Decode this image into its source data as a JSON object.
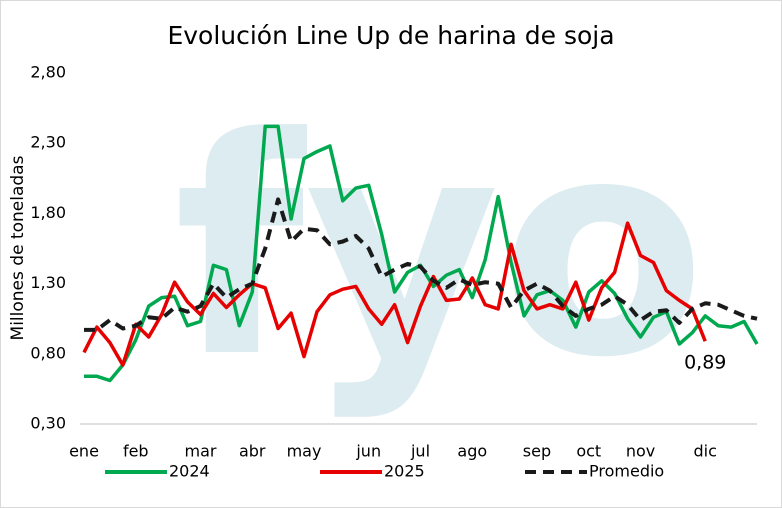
{
  "chart_data": {
    "type": "line",
    "title": "Evolución Line Up de harina de soja",
    "ylabel": "Millones de toneladas",
    "watermark": "fyo",
    "categories": [
      "ene",
      null,
      null,
      null,
      "feb",
      null,
      null,
      null,
      null,
      "mar",
      null,
      null,
      null,
      "abr",
      null,
      null,
      null,
      "may",
      null,
      null,
      null,
      null,
      "jun",
      null,
      null,
      null,
      "jul",
      null,
      null,
      null,
      "ago",
      null,
      null,
      null,
      null,
      "sep",
      null,
      null,
      null,
      "oct",
      null,
      null,
      null,
      "nov",
      null,
      null,
      null,
      null,
      "dic",
      null,
      null,
      null,
      null
    ],
    "ylim": [
      0.3,
      2.8
    ],
    "yticks": [
      {
        "value": 0.3,
        "label": "0,30"
      },
      {
        "value": 0.8,
        "label": "0,80"
      },
      {
        "value": 1.3,
        "label": "1,30"
      },
      {
        "value": 1.8,
        "label": "1,80"
      },
      {
        "value": 2.3,
        "label": "2,30"
      },
      {
        "value": 2.8,
        "label": "2,80"
      }
    ],
    "legend": "bottom",
    "series": [
      {
        "name": "2024",
        "color": "#00a94f",
        "style": "solid",
        "values": [
          0.64,
          0.64,
          0.61,
          0.72,
          0.9,
          1.14,
          1.2,
          1.21,
          1.0,
          1.03,
          1.43,
          1.4,
          1.0,
          1.24,
          2.42,
          2.42,
          1.76,
          2.19,
          2.24,
          2.28,
          1.89,
          1.98,
          2.0,
          1.65,
          1.24,
          1.38,
          1.43,
          1.28,
          1.36,
          1.4,
          1.2,
          1.47,
          1.92,
          1.45,
          1.07,
          1.22,
          1.25,
          1.18,
          0.99,
          1.24,
          1.32,
          1.23,
          1.05,
          0.92,
          1.06,
          1.1,
          0.87,
          0.95,
          1.07,
          1.0,
          0.99,
          1.03,
          0.87
        ]
      },
      {
        "name": "2025",
        "color": "#e60000",
        "style": "solid",
        "values": [
          0.81,
          0.99,
          0.88,
          0.72,
          1.01,
          0.92,
          1.08,
          1.31,
          1.17,
          1.08,
          1.23,
          1.13,
          1.22,
          1.3,
          1.27,
          0.98,
          1.09,
          0.78,
          1.1,
          1.22,
          1.26,
          1.28,
          1.12,
          1.01,
          1.15,
          0.88,
          1.14,
          1.35,
          1.18,
          1.19,
          1.34,
          1.15,
          1.12,
          1.58,
          1.25,
          1.12,
          1.15,
          1.12,
          1.31,
          1.04,
          1.27,
          1.38,
          1.73,
          1.5,
          1.45,
          1.25,
          1.18,
          1.12,
          0.89,
          null,
          null,
          null,
          null
        ],
        "value_labels": [
          null,
          null,
          null,
          null,
          null,
          null,
          null,
          null,
          null,
          null,
          null,
          null,
          null,
          null,
          null,
          null,
          null,
          null,
          null,
          null,
          null,
          null,
          null,
          null,
          null,
          null,
          null,
          null,
          null,
          null,
          null,
          null,
          null,
          null,
          null,
          null,
          null,
          null,
          null,
          null,
          null,
          null,
          null,
          null,
          null,
          null,
          null,
          null,
          "0,89",
          null,
          null,
          null,
          null
        ]
      },
      {
        "name": "Promedio",
        "color": "#1a1a1a",
        "style": "dashed",
        "values": [
          0.97,
          0.97,
          1.04,
          0.98,
          1.0,
          1.06,
          1.05,
          1.13,
          1.1,
          1.14,
          1.3,
          1.2,
          1.26,
          1.3,
          1.55,
          1.9,
          1.6,
          1.69,
          1.68,
          1.58,
          1.6,
          1.64,
          1.55,
          1.35,
          1.4,
          1.44,
          1.42,
          1.32,
          1.27,
          1.33,
          1.29,
          1.31,
          1.3,
          1.13,
          1.25,
          1.3,
          1.25,
          1.14,
          1.07,
          1.12,
          1.15,
          1.21,
          1.15,
          1.04,
          1.1,
          1.11,
          1.02,
          1.12,
          1.16,
          1.15,
          1.11,
          1.07,
          1.05
        ]
      }
    ]
  }
}
